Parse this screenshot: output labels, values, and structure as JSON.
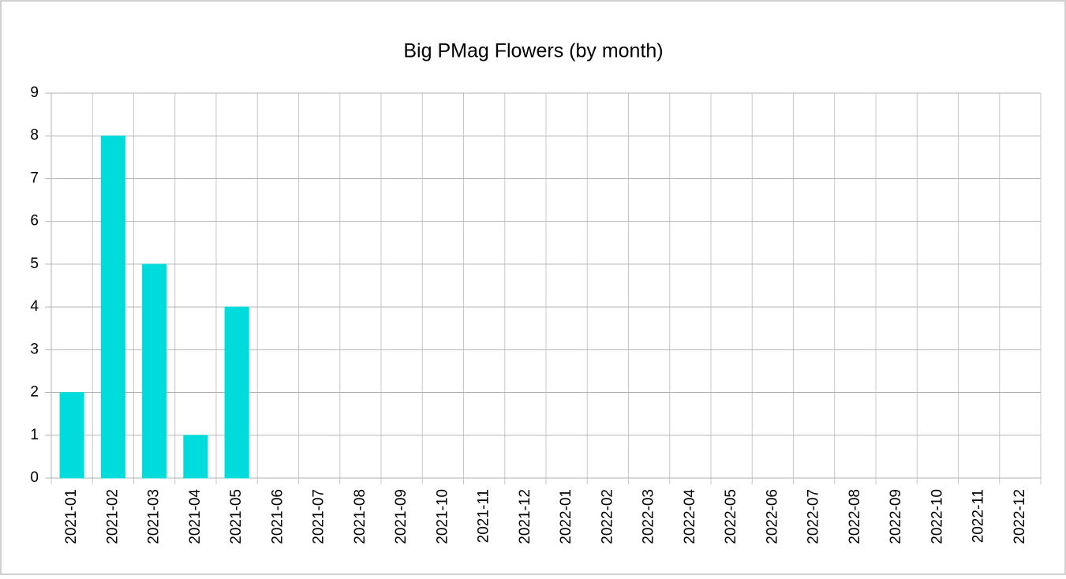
{
  "chart_data": {
    "type": "bar",
    "title": "Big PMag Flowers (by month)",
    "categories": [
      "2021-01",
      "2021-02",
      "2021-03",
      "2021-04",
      "2021-05",
      "2021-06",
      "2021-07",
      "2021-08",
      "2021-09",
      "2021-10",
      "2021-11",
      "2021-12",
      "2022-01",
      "2022-02",
      "2022-03",
      "2022-04",
      "2022-05",
      "2022-06",
      "2022-07",
      "2022-08",
      "2022-09",
      "2022-10",
      "2022-11",
      "2022-12"
    ],
    "values": [
      2,
      8,
      5,
      1,
      4,
      0,
      0,
      0,
      0,
      0,
      0,
      0,
      0,
      0,
      0,
      0,
      0,
      0,
      0,
      0,
      0,
      0,
      0,
      0
    ],
    "color": "#00dcdc",
    "ylim": [
      0,
      9
    ],
    "yticks": [
      0,
      1,
      2,
      3,
      4,
      5,
      6,
      7,
      8,
      9
    ],
    "grid": true
  }
}
